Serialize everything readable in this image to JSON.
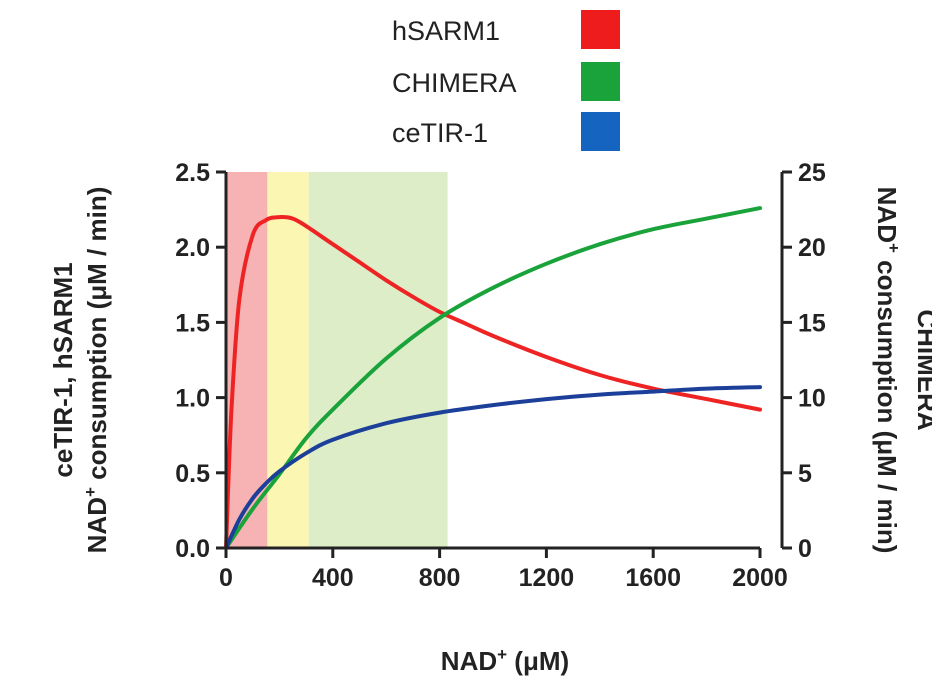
{
  "chart_data": {
    "type": "line",
    "title": "",
    "xlabel": "NAD⁺ (μM)",
    "ylabel_left_line1": "ceTIR-1, hSARM1",
    "ylabel_left_line2": "NAD⁺ consumption (μM / min)",
    "ylabel_right_line1": "CHIMERA",
    "ylabel_right_line2": "NAD⁺ consumption (μM / min)",
    "xlim": [
      0,
      2000
    ],
    "ylim_left": [
      0,
      2.5
    ],
    "ylim_right": [
      0,
      25
    ],
    "x_ticks": [
      "0",
      "400",
      "800",
      "1200",
      "1600",
      "2000"
    ],
    "x_tick_values": [
      0,
      400,
      800,
      1200,
      1600,
      2000
    ],
    "y_left_ticks": [
      "0.0",
      "0.5",
      "1.0",
      "1.5",
      "2.0",
      "2.5"
    ],
    "y_left_tick_values": [
      0,
      0.5,
      1.0,
      1.5,
      2.0,
      2.5
    ],
    "y_right_ticks": [
      "0",
      "5",
      "10",
      "15",
      "20",
      "25"
    ],
    "y_right_tick_values": [
      0,
      5,
      10,
      15,
      20,
      25
    ],
    "shaded_regions": [
      {
        "name": "red-band",
        "x_start": 0,
        "x_end": 155,
        "color": "#f7b3b3"
      },
      {
        "name": "yellow-band",
        "x_start": 155,
        "x_end": 310,
        "color": "#fbf7b3"
      },
      {
        "name": "green-band",
        "x_start": 310,
        "x_end": 830,
        "color": "#dcedc8"
      }
    ],
    "legend": {
      "placement": "top-center",
      "entries": [
        {
          "label": "hSARM1",
          "color": "#ee1c1c"
        },
        {
          "label": "CHIMERA",
          "color": "#1aa33a"
        },
        {
          "label": "ceTIR-1",
          "color": "#1464c0"
        }
      ]
    },
    "series": [
      {
        "name": "hSARM1",
        "axis": "left",
        "color": "#ee2424",
        "x": [
          0,
          20,
          50,
          100,
          150,
          200,
          250,
          300,
          400,
          500,
          600,
          700,
          800,
          900,
          1000,
          1200,
          1400,
          1600,
          1800,
          2000
        ],
        "y": [
          0,
          0.9,
          1.65,
          2.08,
          2.18,
          2.2,
          2.19,
          2.14,
          2.02,
          1.9,
          1.78,
          1.67,
          1.57,
          1.49,
          1.41,
          1.27,
          1.15,
          1.06,
          0.99,
          0.92
        ]
      },
      {
        "name": "CHIMERA",
        "axis": "right",
        "color": "#1aa33a",
        "x": [
          0,
          100,
          200,
          300,
          400,
          600,
          800,
          1000,
          1200,
          1400,
          1600,
          1800,
          2000
        ],
        "y": [
          0,
          2.6,
          4.9,
          7.3,
          9.2,
          12.6,
          15.3,
          17.3,
          18.9,
          20.2,
          21.2,
          21.9,
          22.6
        ]
      },
      {
        "name": "ceTIR-1",
        "axis": "left",
        "color": "#1c3f9a",
        "x": [
          0,
          50,
          100,
          150,
          200,
          300,
          400,
          600,
          800,
          1000,
          1200,
          1400,
          1600,
          1800,
          2000
        ],
        "y": [
          0,
          0.19,
          0.33,
          0.43,
          0.51,
          0.63,
          0.72,
          0.83,
          0.9,
          0.95,
          0.99,
          1.02,
          1.04,
          1.06,
          1.07
        ]
      }
    ]
  }
}
